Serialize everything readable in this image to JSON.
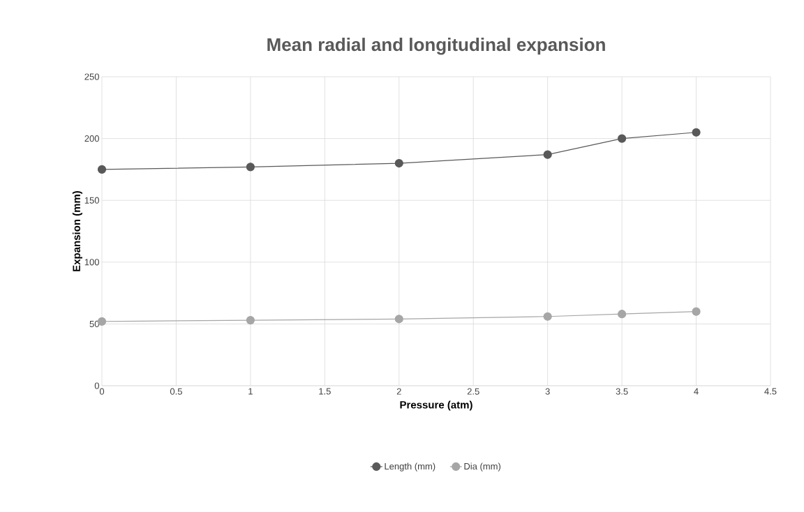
{
  "chart_data": {
    "type": "line",
    "title": "Mean radial and longitudinal expansion",
    "xlabel": "Pressure (atm)",
    "ylabel": "Expansion (mm)",
    "x": [
      0,
      1,
      2,
      3,
      3.5,
      4
    ],
    "series": [
      {
        "name": "Length (mm)",
        "color": "#595959",
        "values": [
          175,
          177,
          180,
          187,
          200,
          205
        ]
      },
      {
        "name": "Dia (mm)",
        "color": "#a6a6a6",
        "values": [
          52,
          53,
          54,
          56,
          58,
          60
        ]
      }
    ],
    "xlim": [
      0,
      4.5
    ],
    "xticks": [
      0,
      0.5,
      1,
      1.5,
      2,
      2.5,
      3,
      3.5,
      4,
      4.5
    ],
    "ylim": [
      0,
      250
    ],
    "yticks": [
      0,
      50,
      100,
      150,
      200,
      250
    ],
    "grid": true,
    "legend": "bottom",
    "marker": "circle",
    "line_style": "solid"
  }
}
